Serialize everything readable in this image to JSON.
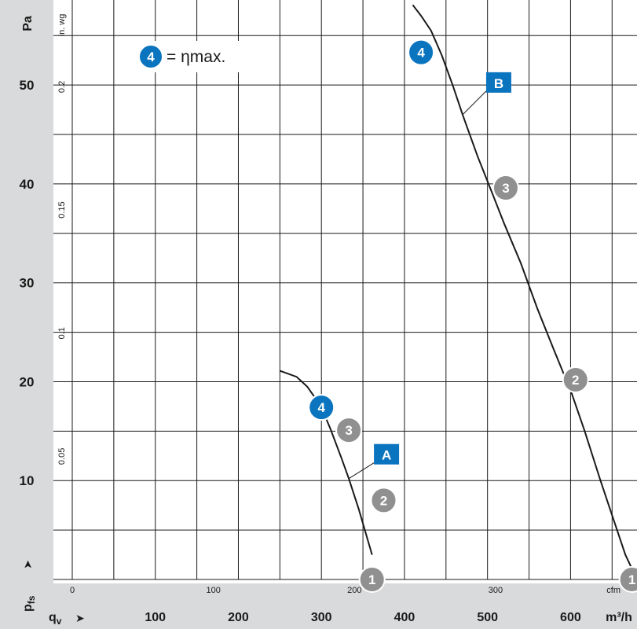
{
  "chart_data": {
    "type": "line",
    "y_axis_left": {
      "unit_label": "Pa",
      "ticks": [
        10,
        20,
        30,
        40,
        50
      ],
      "range": [
        0,
        58.6
      ],
      "symbol_main": "p",
      "symbol_sub": "fs",
      "arrow": "➤"
    },
    "y_axis_inner": {
      "unit_label": "in. wg",
      "ticks": [
        "0.05",
        "0.1",
        "0.15",
        "0.2"
      ],
      "tick_values": [
        0.05,
        0.1,
        0.15,
        0.2
      ]
    },
    "x_axis_bottom": {
      "unit_label": "m³/h",
      "ticks": [
        100,
        200,
        300,
        400,
        500,
        600
      ],
      "range": [
        0,
        680
      ],
      "symbol_main": "q",
      "symbol_sub": "v",
      "arrow": "➤"
    },
    "x_axis_inner": {
      "unit_label": "cfm",
      "ticks": [
        "0",
        "100",
        "200",
        "300"
      ],
      "tick_values": [
        0,
        100,
        200,
        300
      ]
    },
    "grid": true,
    "legend": {
      "marker": "4",
      "text": "= ηmax.",
      "placement": "top-left"
    },
    "series": [
      {
        "name": "A",
        "x": [
          250,
          270,
          283,
          293,
          300,
          311,
          324,
          333,
          340,
          345,
          361
        ],
        "y": [
          21.1,
          20.5,
          19.5,
          18.3,
          17.4,
          15.2,
          12.3,
          10.2,
          8.4,
          7.1,
          2.5
        ],
        "operating_points": [
          {
            "label": "4",
            "x": 300,
            "y": 17.4,
            "highlight": true
          },
          {
            "label": "3",
            "x": 333,
            "y": 15.1,
            "highlight": false
          },
          {
            "label": "2",
            "x": 375,
            "y": 8.0,
            "highlight": false
          },
          {
            "label": "1",
            "x": 361,
            "y": 0.0,
            "highlight": false
          }
        ]
      },
      {
        "name": "B",
        "x": [
          410,
          420,
          432,
          445,
          458,
          470,
          488,
          506,
          520,
          540,
          560,
          580,
          601,
          617,
          636,
          650,
          666,
          680
        ],
        "y": [
          58.1,
          57.0,
          55.5,
          53.0,
          50.0,
          47.0,
          42.8,
          39.0,
          36.0,
          32.0,
          27.4,
          23.2,
          18.9,
          15.0,
          10.0,
          6.5,
          2.5,
          0.0
        ],
        "operating_points": [
          {
            "label": "4",
            "x": 420,
            "y": 53.3,
            "highlight": true
          },
          {
            "label": "3",
            "x": 522,
            "y": 39.6,
            "highlight": false
          },
          {
            "label": "2",
            "x": 606,
            "y": 20.2,
            "highlight": false
          },
          {
            "label": "1",
            "x": 674,
            "y": 0.0,
            "highlight": false
          }
        ]
      }
    ]
  }
}
